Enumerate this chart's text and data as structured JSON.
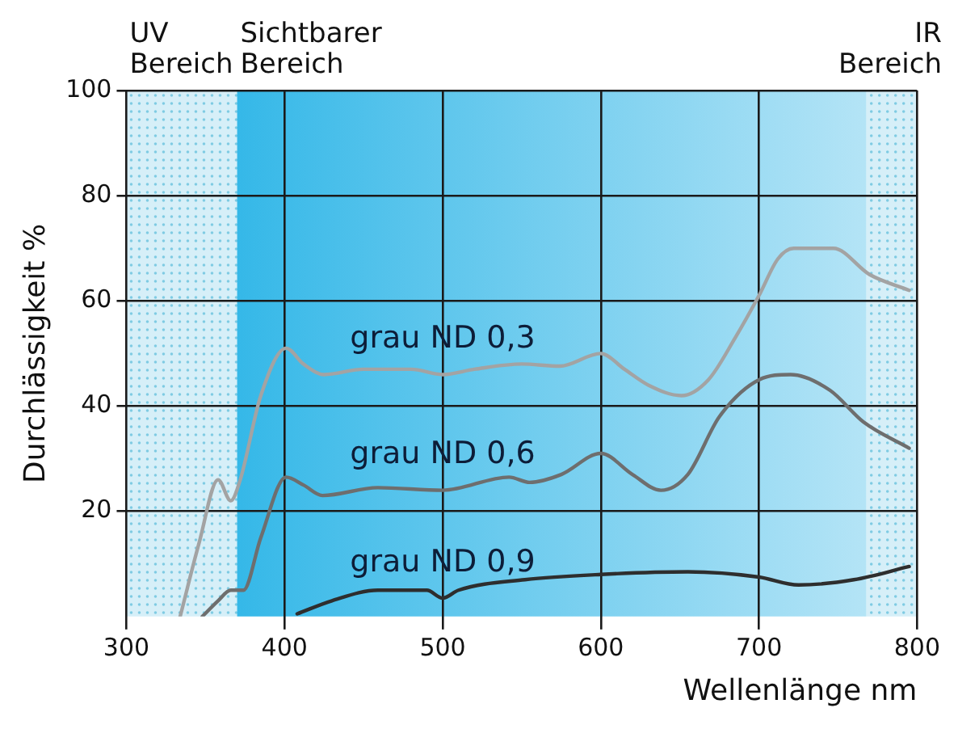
{
  "chart_data": {
    "type": "line",
    "xlabel": "Wellenlänge nm",
    "ylabel": "Durchlässigkeit %",
    "xlim": [
      300,
      800
    ],
    "xticks": [
      300,
      400,
      500,
      600,
      700,
      800
    ],
    "ylim": [
      0,
      100
    ],
    "yticks": [
      20,
      40,
      60,
      80,
      100
    ],
    "grid": true,
    "legend": false,
    "marker": "none",
    "line_style": "solid",
    "bands": [
      {
        "axis": "x",
        "from": 300,
        "to": 370,
        "label": "UV Bereich",
        "color": "#d6eff8"
      },
      {
        "axis": "x",
        "from": 370,
        "to": 768,
        "label": "Sichtbarer Bereich",
        "color": "#35b8e8"
      },
      {
        "axis": "x",
        "from": 768,
        "to": 800,
        "label": "IR Bereich",
        "color": "#d6eff8"
      }
    ],
    "series": [
      {
        "name": "grau ND 0,3",
        "color": "#a3a3a3",
        "x": [
          334,
          346,
          358,
          366,
          372,
          385,
          401,
          412,
          425,
          450,
          480,
          500,
          520,
          550,
          574,
          600,
          615,
          630,
          651,
          668,
          685,
          700,
          712,
          722,
          747,
          770,
          795
        ],
        "values": [
          0,
          14,
          26,
          22,
          26,
          42,
          51,
          48,
          46,
          47,
          47,
          46,
          47,
          48,
          47.6,
          50,
          47,
          44,
          42,
          45,
          53,
          61,
          68,
          70,
          70,
          65,
          62
        ]
      },
      {
        "name": "grau ND 0,6",
        "color": "#6e6e6e",
        "x": [
          348,
          358,
          366,
          374,
          385,
          401,
          412,
          424,
          459,
          500,
          542,
          555,
          575,
          600,
          620,
          638,
          655,
          675,
          700,
          720,
          745,
          766,
          795
        ],
        "values": [
          0,
          3,
          5,
          5,
          15,
          26.5,
          25,
          23,
          24.5,
          24,
          26.5,
          25.5,
          27,
          31,
          27,
          24,
          27,
          38,
          45,
          46,
          43,
          37,
          32
        ]
      },
      {
        "name": "grau ND 0,9",
        "color": "#2e2e2e",
        "x": [
          408,
          430,
          459,
          490,
          500,
          510,
          552,
          600,
          655,
          700,
          725,
          760,
          795
        ],
        "values": [
          0.5,
          3,
          5,
          5,
          3.5,
          5,
          7,
          8,
          8.5,
          7.5,
          6,
          7,
          9.5
        ]
      }
    ]
  }
}
